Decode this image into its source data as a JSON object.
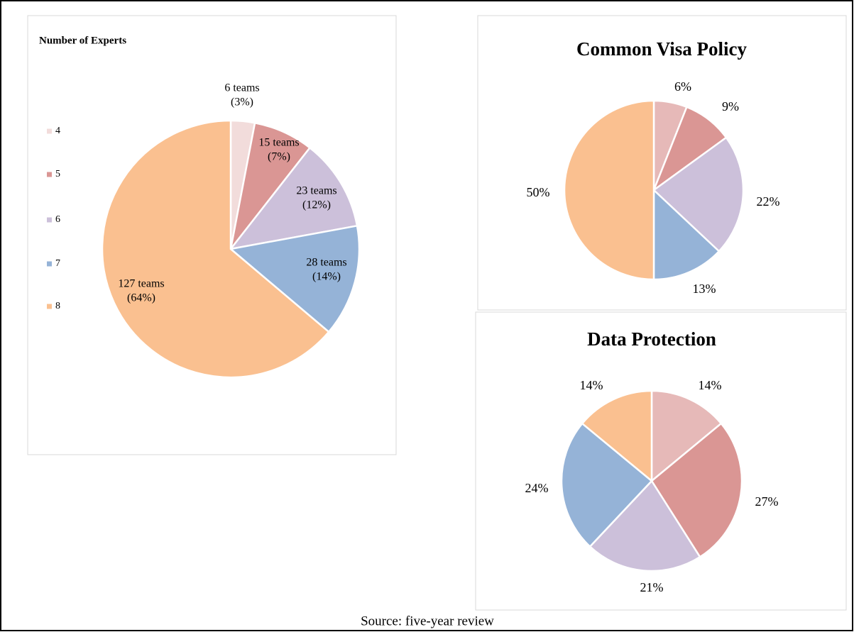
{
  "chart_data": [
    {
      "type": "pie",
      "title": "Number of Experts",
      "categories": [
        "4",
        "5",
        "6",
        "7",
        "8"
      ],
      "values": [
        6,
        15,
        23,
        28,
        127
      ],
      "value_labels": [
        "6 teams",
        "15 teams",
        "23 teams",
        "28 teams",
        "127 teams"
      ],
      "percentages": [
        3,
        7,
        12,
        14,
        64
      ],
      "percent_labels": [
        "(3%)",
        "(7%)",
        "(12%)",
        "(14%)",
        "(64%)"
      ],
      "colors": [
        "#f2dcdb",
        "#da9694",
        "#ccc0da",
        "#95b3d7",
        "#fac090"
      ],
      "legend": "left"
    },
    {
      "type": "pie",
      "title": "Common Visa Policy",
      "values": [
        6,
        9,
        22,
        13,
        50
      ],
      "value_labels": [
        "6%",
        "9%",
        "22%",
        "13%",
        "50%"
      ],
      "colors": [
        "#e6b9b8",
        "#da9694",
        "#ccc0da",
        "#95b3d7",
        "#fac090"
      ]
    },
    {
      "type": "pie",
      "title": "Data Protection",
      "values": [
        14,
        27,
        21,
        24,
        14
      ],
      "value_labels": [
        "14%",
        "27%",
        "21%",
        "24%",
        "14%"
      ],
      "colors": [
        "#e6b9b8",
        "#da9694",
        "#ccc0da",
        "#95b3d7",
        "#fac090"
      ]
    }
  ],
  "source": "Source: five-year review"
}
